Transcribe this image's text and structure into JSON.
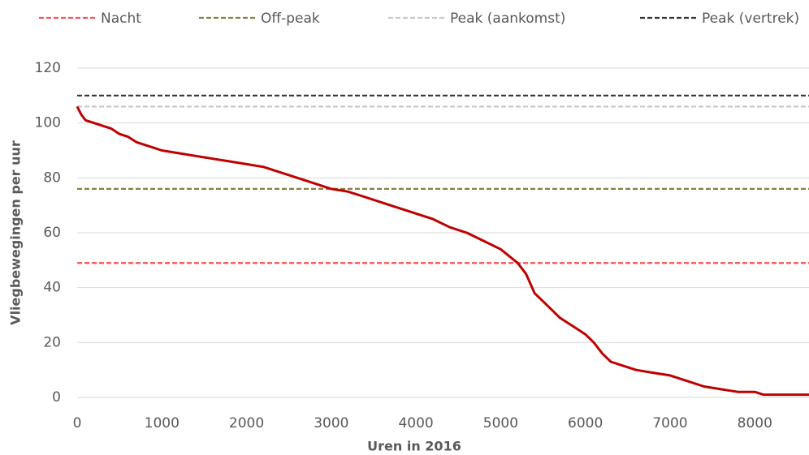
{
  "chart_data": {
    "type": "line",
    "x_label": "Uren in 2016",
    "y_label": "Vliegbewegingen per uur",
    "xlim": [
      0,
      8640
    ],
    "xticks": [
      0,
      1000,
      2000,
      3000,
      4000,
      5000,
      6000,
      7000,
      8000
    ],
    "ylim": [
      0,
      120
    ],
    "yticks": [
      0,
      20,
      40,
      60,
      80,
      100,
      120
    ],
    "grid": true,
    "legend": "top",
    "curve": {
      "color": "#c00000",
      "x": [
        0,
        50,
        100,
        200,
        300,
        400,
        500,
        600,
        700,
        800,
        900,
        1000,
        1200,
        1400,
        1600,
        1800,
        2000,
        2200,
        2400,
        2600,
        2800,
        3000,
        3200,
        3400,
        3600,
        3800,
        4000,
        4200,
        4400,
        4600,
        4800,
        5000,
        5200,
        5300,
        5400,
        5500,
        5600,
        5700,
        5800,
        5900,
        6000,
        6100,
        6200,
        6300,
        6400,
        6600,
        6800,
        7000,
        7200,
        7400,
        7600,
        7800,
        8000,
        8100,
        8640
      ],
      "values": [
        106,
        103,
        101,
        100,
        99,
        98,
        96,
        95,
        93,
        92,
        91,
        90,
        89,
        88,
        87,
        86,
        85,
        84,
        82,
        80,
        78,
        76,
        75,
        73,
        71,
        69,
        67,
        65,
        62,
        60,
        57,
        54,
        49,
        45,
        38,
        35,
        32,
        29,
        27,
        25,
        23,
        20,
        16,
        13,
        12,
        10,
        9,
        8,
        6,
        4,
        3,
        2,
        2,
        1,
        1
      ]
    },
    "reference_lines": [
      {
        "name": "Nacht",
        "color": "#ff4d4d",
        "value": 49
      },
      {
        "name": "Off-peak",
        "color": "#8c7d3c",
        "value": 76
      },
      {
        "name": "Peak (aankomst)",
        "color": "#c8c8c8",
        "value": 106
      },
      {
        "name": "Peak (vertrek)",
        "color": "#333333",
        "value": 110
      }
    ]
  }
}
